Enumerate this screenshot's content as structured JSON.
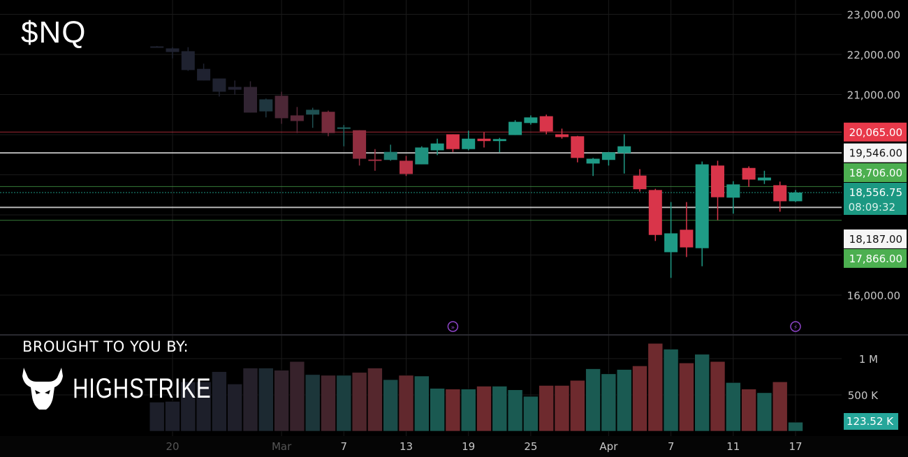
{
  "header": {
    "ticker": "$NQ"
  },
  "branding": {
    "caption": "BROUGHT TO YOU BY:",
    "name": "HIGHSTRIKE"
  },
  "colors": {
    "up": "#1f9b86",
    "down": "#d9354a",
    "faded": "#1f2230",
    "grid": "#1a1a1a",
    "level_red": "#e8394a",
    "level_green": "#4caf50",
    "level_white": "#f2f2f2",
    "last_price": "#1b9882"
  },
  "chart_data": {
    "type": "candlestick",
    "symbol": "$NQ",
    "ylim": [
      15500,
      23300
    ],
    "y_ticks": [
      {
        "value": 23000,
        "label": "23,000.00"
      },
      {
        "value": 22000,
        "label": "22,000.00"
      },
      {
        "value": 21000,
        "label": "21,000.00"
      },
      {
        "value": 20000,
        "label": ""
      },
      {
        "value": 19000,
        "label": ""
      },
      {
        "value": 18000,
        "label": ""
      },
      {
        "value": 17000,
        "label": ""
      },
      {
        "value": 16000,
        "label": "16,000.00"
      }
    ],
    "x_ticks": [
      {
        "index": 1,
        "label": "20"
      },
      {
        "index": 8,
        "label": "Mar"
      },
      {
        "index": 12,
        "label": "7"
      },
      {
        "index": 16,
        "label": "13"
      },
      {
        "index": 20,
        "label": "19"
      },
      {
        "index": 24,
        "label": "25"
      },
      {
        "index": 29,
        "label": "Apr"
      },
      {
        "index": 33,
        "label": "7"
      },
      {
        "index": 37,
        "label": "11"
      },
      {
        "index": 41,
        "label": "17"
      }
    ],
    "candles": [
      [
        22180,
        22210,
        22170,
        22200
      ],
      [
        22150,
        22180,
        21900,
        22060
      ],
      [
        22080,
        22180,
        21590,
        21610
      ],
      [
        21640,
        21770,
        21350,
        21350
      ],
      [
        21400,
        21400,
        20950,
        21070
      ],
      [
        21190,
        21350,
        21000,
        21120
      ],
      [
        21190,
        21330,
        20550,
        20550
      ],
      [
        20580,
        20900,
        20430,
        20880
      ],
      [
        20970,
        21070,
        20270,
        20410
      ],
      [
        20480,
        20690,
        20040,
        20340
      ],
      [
        20500,
        20670,
        20170,
        20620
      ],
      [
        20570,
        20600,
        19960,
        20040
      ],
      [
        20150,
        20240,
        19710,
        20180
      ],
      [
        20110,
        20110,
        19230,
        19400
      ],
      [
        19380,
        19640,
        19100,
        19350
      ],
      [
        19370,
        19750,
        19350,
        19570
      ],
      [
        19350,
        19470,
        18970,
        19020
      ],
      [
        19260,
        19710,
        19260,
        19680
      ],
      [
        19610,
        19900,
        19490,
        19780
      ],
      [
        20010,
        20010,
        19570,
        19640
      ],
      [
        19640,
        20100,
        19610,
        19900
      ],
      [
        19900,
        20060,
        19680,
        19840
      ],
      [
        19840,
        19920,
        19560,
        19890
      ],
      [
        19990,
        20360,
        19990,
        20320
      ],
      [
        20290,
        20480,
        20250,
        20430
      ],
      [
        20460,
        20500,
        20010,
        20080
      ],
      [
        20010,
        20150,
        19900,
        19940
      ],
      [
        19960,
        19970,
        19310,
        19420
      ],
      [
        19280,
        19420,
        18970,
        19400
      ],
      [
        19370,
        19570,
        19230,
        19560
      ],
      [
        19540,
        20010,
        19030,
        19710
      ],
      [
        18980,
        19140,
        18580,
        18640
      ],
      [
        18620,
        18650,
        17350,
        17500
      ],
      [
        17070,
        18320,
        16430,
        17540
      ],
      [
        17630,
        18320,
        16950,
        17190
      ],
      [
        17170,
        19330,
        16720,
        19260
      ],
      [
        19230,
        19350,
        17870,
        18440
      ],
      [
        18430,
        18840,
        18030,
        18760
      ],
      [
        19170,
        19210,
        18700,
        18880
      ],
      [
        18860,
        19100,
        18770,
        18930
      ],
      [
        18740,
        18830,
        18080,
        18340
      ],
      [
        18340,
        18620,
        18320,
        18556.75
      ]
    ],
    "candle_fields": [
      "open",
      "high",
      "low",
      "close"
    ],
    "volume": {
      "unit": "M",
      "ylim": [
        0,
        1.25
      ],
      "ticks": [
        {
          "value": 1,
          "label": "1 M"
        },
        {
          "value": 0.5,
          "label": "500 K"
        }
      ],
      "values": [
        0.4,
        0.41,
        0.68,
        0.68,
        0.82,
        0.65,
        0.87,
        0.87,
        0.84,
        0.96,
        0.78,
        0.77,
        0.77,
        0.81,
        0.87,
        0.71,
        0.77,
        0.76,
        0.59,
        0.58,
        0.58,
        0.62,
        0.62,
        0.57,
        0.48,
        0.63,
        0.63,
        0.7,
        0.86,
        0.79,
        0.85,
        0.9,
        1.21,
        1.13,
        0.94,
        1.06,
        0.96,
        0.67,
        0.58,
        0.53,
        0.68,
        0.12352
      ],
      "last_label": "123.52 K"
    },
    "levels": [
      {
        "value": 20065,
        "label": "20,065.00",
        "style": "red"
      },
      {
        "value": 19546,
        "label": "19,546.00",
        "style": "white"
      },
      {
        "value": 18706,
        "label": "18,706.00",
        "style": "green"
      },
      {
        "value": 18187,
        "label": "18,187.00",
        "style": "white"
      },
      {
        "value": 17866,
        "label": "17,866.00",
        "style": "green"
      }
    ],
    "last_price": {
      "value": 18556.75,
      "label": "18,556.75",
      "countdown": "08:09:32"
    },
    "markers": [
      {
        "index": 19,
        "icon": "dividend-marker-icon"
      },
      {
        "index": 41,
        "icon": "earnings-flash-icon"
      }
    ]
  }
}
